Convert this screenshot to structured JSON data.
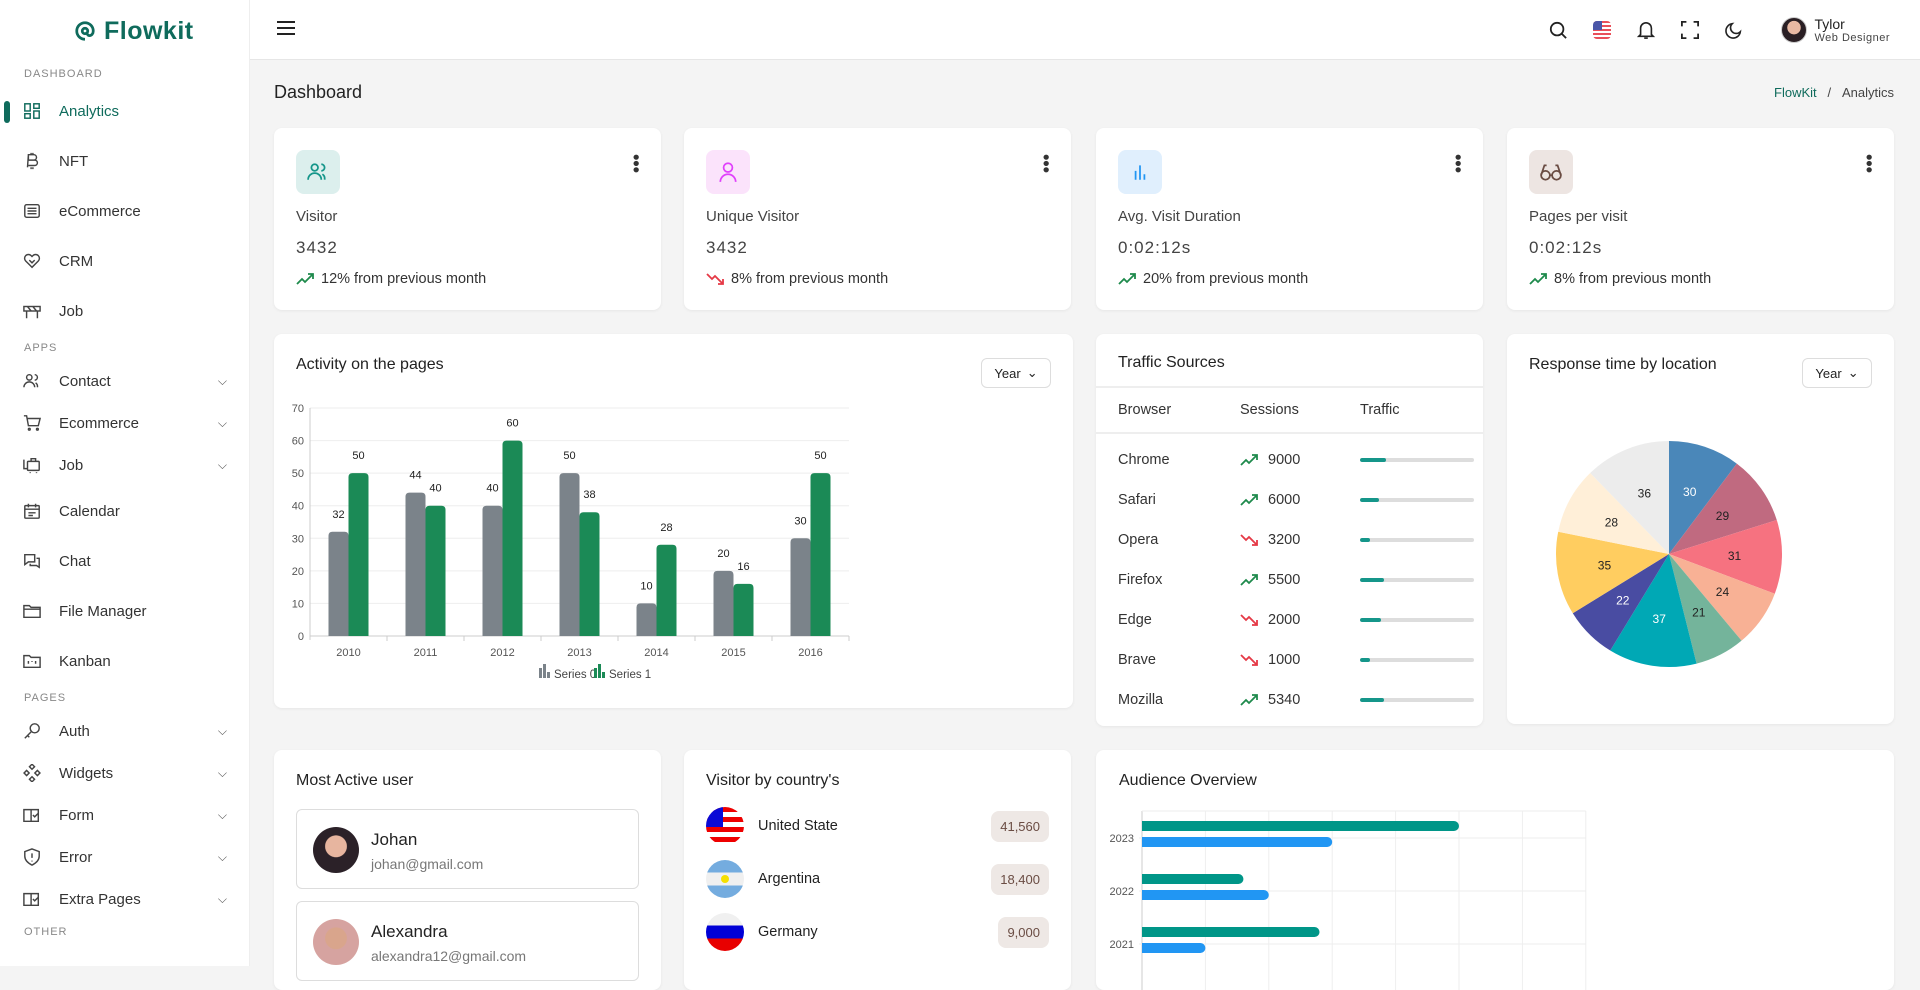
{
  "brand": "Flowkit",
  "sidebar": {
    "sections": [
      "DASHBOARD",
      "APPS",
      "PAGES",
      "OTHER"
    ],
    "dashboard": [
      {
        "label": "Analytics",
        "icon": "grid-icon",
        "active": true
      },
      {
        "label": "NFT",
        "icon": "bitcoin-icon"
      },
      {
        "label": "eCommerce",
        "icon": "store-icon"
      },
      {
        "label": "CRM",
        "icon": "handshake-heart-icon"
      },
      {
        "label": "Job",
        "icon": "barrier-icon"
      }
    ],
    "apps": [
      {
        "label": "Contact",
        "icon": "users-icon",
        "expandable": true
      },
      {
        "label": "Ecommerce",
        "icon": "cart-icon",
        "expandable": true
      },
      {
        "label": "Job",
        "icon": "luggage-icon",
        "expandable": true
      },
      {
        "label": "Calendar",
        "icon": "calendar-icon"
      },
      {
        "label": "Chat",
        "icon": "chat-icon"
      },
      {
        "label": "File Manager",
        "icon": "folder-icon"
      },
      {
        "label": "Kanban",
        "icon": "kanban-icon"
      }
    ],
    "pages": [
      {
        "label": "Auth",
        "icon": "key-icon",
        "expandable": true
      },
      {
        "label": "Widgets",
        "icon": "widgets-icon",
        "expandable": true
      },
      {
        "label": "Form",
        "icon": "book-check-icon",
        "expandable": true
      },
      {
        "label": "Error",
        "icon": "shield-alert-icon",
        "expandable": true
      },
      {
        "label": "Extra Pages",
        "icon": "book-check-icon",
        "expandable": true
      }
    ]
  },
  "header": {
    "user_name": "Tylor",
    "user_role": "Web Designer",
    "icons": [
      "menu-icon",
      "search-icon",
      "us-flag-icon",
      "bell-icon",
      "fullscreen-icon",
      "moon-icon"
    ]
  },
  "page": {
    "title": "Dashboard",
    "breadcrumb": [
      "FlowKit",
      "/",
      "Analytics"
    ]
  },
  "stats": [
    {
      "label": "Visitor",
      "value": "3432",
      "change": "12% from previous month",
      "trend": "up",
      "icon": "users-icon",
      "icon_bg": "#dcefed",
      "icon_color": "#15968a"
    },
    {
      "label": "Unique Visitor",
      "value": "3432",
      "change": "8% from previous month",
      "trend": "down",
      "icon": "user-icon",
      "icon_bg": "#fbe3fb",
      "icon_color": "#e040fb"
    },
    {
      "label": "Avg. Visit Duration",
      "value": "0:02:12s",
      "change": "20% from previous month",
      "trend": "up",
      "icon": "bar-chart-icon",
      "icon_bg": "#e0effd",
      "icon_color": "#2196f3"
    },
    {
      "label": "Pages per visit",
      "value": "0:02:12s",
      "change": "8% from previous month",
      "trend": "up",
      "icon": "glasses-icon",
      "icon_bg": "#ede5e2",
      "icon_color": "#6a4c43"
    }
  ],
  "activity": {
    "title": "Activity on the pages",
    "select": "Year"
  },
  "traffic": {
    "title": "Traffic Sources",
    "columns": [
      "Browser",
      "Sessions",
      "Traffic"
    ],
    "rows": [
      {
        "browser": "Chrome",
        "sessions": "9000",
        "trend": "up",
        "traffic": 0.23
      },
      {
        "browser": "Safari",
        "sessions": "6000",
        "trend": "up",
        "traffic": 0.17
      },
      {
        "browser": "Opera",
        "sessions": "3200",
        "trend": "down",
        "traffic": 0.09
      },
      {
        "browser": "Firefox",
        "sessions": "5500",
        "trend": "up",
        "traffic": 0.21
      },
      {
        "browser": "Edge",
        "sessions": "2000",
        "trend": "down",
        "traffic": 0.18
      },
      {
        "browser": "Brave",
        "sessions": "1000",
        "trend": "down",
        "traffic": 0.09
      },
      {
        "browser": "Mozilla",
        "sessions": "5340",
        "trend": "up",
        "traffic": 0.21
      }
    ]
  },
  "response": {
    "title": "Response time by location",
    "select": "Year"
  },
  "active_users": {
    "title": "Most Active user",
    "users": [
      {
        "name": "Johan",
        "email": "johan@gmail.com"
      },
      {
        "name": "Alexandra",
        "email": "alexandra12@gmail.com"
      }
    ]
  },
  "countries": {
    "title": "Visitor by country's",
    "items": [
      {
        "name": "United State",
        "value": "41,560",
        "flag": "us"
      },
      {
        "name": "Argentina",
        "value": "18,400",
        "flag": "ar"
      },
      {
        "name": "Germany",
        "value": "9,000",
        "flag": "ru-like"
      }
    ]
  },
  "audience": {
    "title": "Audience Overview"
  },
  "colors": {
    "brand": "#0f6b5c",
    "up": "#1e8a4c",
    "down": "#e53946"
  },
  "chart_data": [
    {
      "type": "bar",
      "title": "Activity on the pages",
      "categories": [
        "2010",
        "2011",
        "2012",
        "2013",
        "2014",
        "2015",
        "2016"
      ],
      "series": [
        {
          "name": "Series 0",
          "color": "#7b838a",
          "values": [
            32,
            44,
            40,
            50,
            10,
            20,
            30
          ]
        },
        {
          "name": "Series 1",
          "color": "#1b8a56",
          "values": [
            50,
            40,
            60,
            38,
            28,
            16,
            50
          ]
        }
      ],
      "ylim": [
        0,
        70
      ],
      "yticks": [
        0,
        10,
        20,
        30,
        40,
        50,
        60,
        70
      ],
      "grid": true,
      "legend": "bottom",
      "data_labels": true
    },
    {
      "type": "pie",
      "title": "Response time by location",
      "values": [
        30,
        29,
        31,
        24,
        21,
        37,
        22,
        35,
        28,
        36
      ],
      "colors": [
        "#4a87b9",
        "#c06a80",
        "#f67280",
        "#f8b195",
        "#74b49b",
        "#00a8b5",
        "#494ca2",
        "#ffcd60",
        "#ffefd8",
        "#ececec"
      ],
      "label_colors": [
        "#fff",
        "#222",
        "#222",
        "#222",
        "#222",
        "#fff",
        "#fff",
        "#222",
        "#222",
        "#222"
      ]
    },
    {
      "type": "bar",
      "orientation": "horizontal",
      "title": "Audience Overview",
      "categories": [
        "2023",
        "2022",
        "2021"
      ],
      "series": [
        {
          "color": "#009688",
          "values": [
            5,
            1.6,
            2.8
          ]
        },
        {
          "color": "#2196f3",
          "values": [
            3,
            2,
            1
          ]
        }
      ],
      "grid": true
    }
  ]
}
